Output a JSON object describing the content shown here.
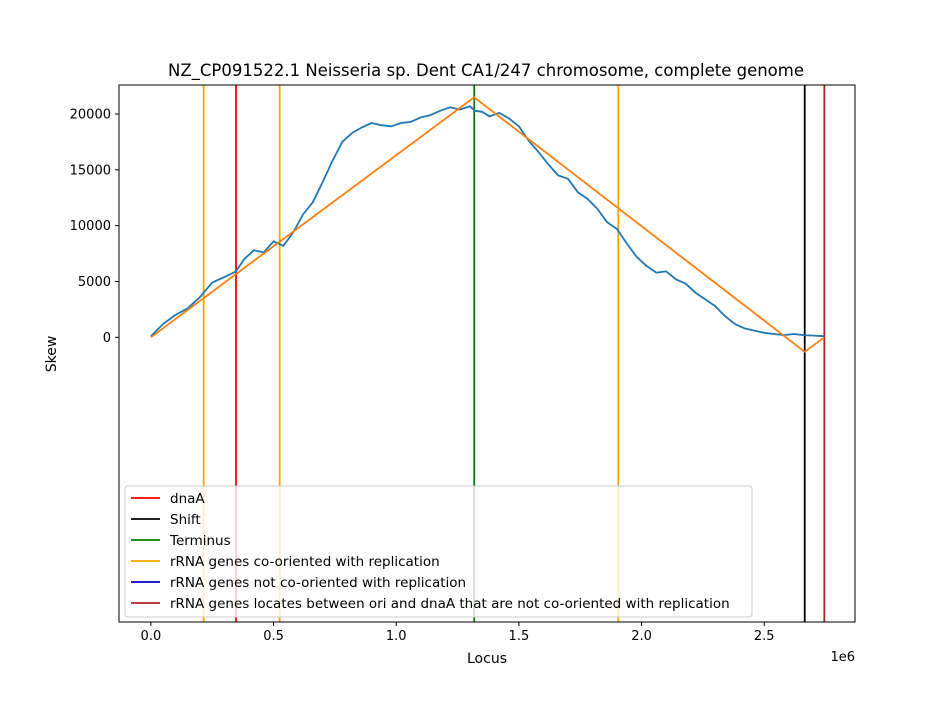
{
  "chart_data": {
    "type": "line",
    "title": "NZ_CP091522.1 Neisseria sp. Dent CA1/247 chromosome, complete genome",
    "xlabel": "Locus",
    "ylabel": "Skew",
    "x_offset_label": "1e6",
    "xlim": [
      -130000,
      2870000
    ],
    "ylim": [
      -25500.0,
      22600
    ],
    "x_ticks": [
      {
        "value": 0,
        "label": "0.0"
      },
      {
        "value": 500000,
        "label": "0.5"
      },
      {
        "value": 1000000,
        "label": "1.0"
      },
      {
        "value": 1500000,
        "label": "1.5"
      },
      {
        "value": 2000000,
        "label": "2.0"
      },
      {
        "value": 2500000,
        "label": "2.5"
      }
    ],
    "y_ticks": [
      {
        "value": 0,
        "label": "0"
      },
      {
        "value": 5000,
        "label": "5000"
      },
      {
        "value": 10000,
        "label": "10000"
      },
      {
        "value": 15000,
        "label": "15000"
      },
      {
        "value": 20000,
        "label": "20000"
      }
    ],
    "grid": false,
    "legend_position": "lower-left",
    "vlines": [
      {
        "name": "rRNA genes co-oriented with replication",
        "x": 215000,
        "color": "#ffa500"
      },
      {
        "name": "dnaA",
        "x": 347000,
        "color": "#ff0000"
      },
      {
        "name": "rRNA genes co-oriented with replication",
        "x": 525000,
        "color": "#ffa500"
      },
      {
        "name": "Terminus",
        "x": 1318000,
        "color": "#008000"
      },
      {
        "name": "rRNA genes co-oriented with replication",
        "x": 1905000,
        "color": "#ffa500"
      },
      {
        "name": "Shift",
        "x": 2665000,
        "color": "#000000"
      },
      {
        "name": "rRNA genes locates between ori and dnaA that are not co-oriented with replication",
        "x": 2745000,
        "color": "#b22222"
      }
    ],
    "series": [
      {
        "name": "skew",
        "color": "#1f77b4",
        "x": [
          0,
          50000,
          100000,
          150000,
          200000,
          250000,
          300000,
          347000,
          380000,
          420000,
          460000,
          500000,
          540000,
          580000,
          620000,
          660000,
          700000,
          740000,
          780000,
          820000,
          860000,
          900000,
          940000,
          980000,
          1020000,
          1060000,
          1100000,
          1140000,
          1180000,
          1220000,
          1260000,
          1300000,
          1320000,
          1350000,
          1380000,
          1420000,
          1460000,
          1500000,
          1540000,
          1580000,
          1620000,
          1660000,
          1700000,
          1740000,
          1780000,
          1820000,
          1860000,
          1900000,
          1940000,
          1980000,
          2020000,
          2060000,
          2100000,
          2140000,
          2180000,
          2220000,
          2260000,
          2300000,
          2340000,
          2380000,
          2420000,
          2460000,
          2500000,
          2540000,
          2580000,
          2620000,
          2660000,
          2700000,
          2745000
        ],
        "values": [
          100,
          1200,
          2000,
          2600,
          3600,
          4900,
          5400,
          5900,
          7000,
          7800,
          7600,
          8600,
          8200,
          9400,
          11000,
          12100,
          13900,
          15800,
          17500,
          18300,
          18800,
          19200,
          19000,
          18900,
          19200,
          19300,
          19700,
          19900,
          20300,
          20600,
          20400,
          20700,
          20300,
          20200,
          19800,
          20100,
          19600,
          18900,
          17600,
          16600,
          15500,
          14500,
          14200,
          13000,
          12400,
          11500,
          10300,
          9700,
          8400,
          7200,
          6400,
          5800,
          5900,
          5200,
          4800,
          4000,
          3400,
          2800,
          1900,
          1200,
          800,
          600,
          400,
          300,
          200,
          300,
          200,
          150,
          100
        ]
      },
      {
        "name": "fit",
        "color": "#ff7f0e",
        "x": [
          0,
          1318000,
          2665000,
          2745000
        ],
        "values": [
          0,
          21500,
          -1300,
          0
        ]
      }
    ],
    "legend": [
      {
        "label": "dnaA",
        "color": "#ff0000"
      },
      {
        "label": "Shift",
        "color": "#000000"
      },
      {
        "label": "Terminus",
        "color": "#008000"
      },
      {
        "label": "rRNA genes co-oriented with replication",
        "color": "#ffa500"
      },
      {
        "label": "rRNA genes not co-oriented with replication",
        "color": "#0000cd"
      },
      {
        "label": "rRNA genes locates between ori and dnaA that are not co-oriented with replication",
        "color": "#b22222"
      }
    ]
  }
}
